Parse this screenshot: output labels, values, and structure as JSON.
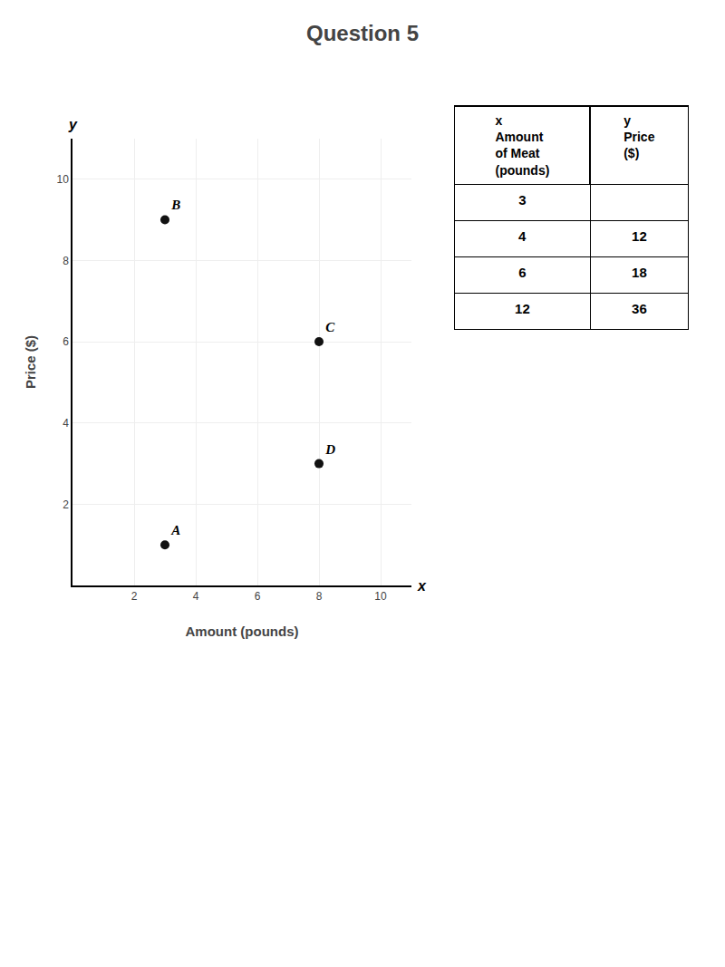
{
  "chart_data": {
    "type": "scatter",
    "title": "Question 5",
    "xlabel": "Amount (pounds)",
    "ylabel": "Price ($)",
    "x": [
      3,
      3,
      8,
      8
    ],
    "values": [
      1,
      9,
      6,
      3
    ],
    "labels": [
      "A",
      "B",
      "C",
      "D"
    ],
    "color": "#111111",
    "xlim": [
      0,
      11
    ],
    "ylim": [
      0,
      11
    ],
    "xticks": [
      2,
      4,
      6,
      8,
      10
    ],
    "yticks": [
      2,
      4,
      6,
      8,
      10
    ],
    "grid": true,
    "annotations": [
      {
        "text": "y",
        "axis": "y"
      },
      {
        "text": "x",
        "axis": "x"
      }
    ],
    "table": {
      "columns": [
        "x\nAmount\nof Meat\n(pounds)",
        "y\nPrice\n($)"
      ],
      "rows": [
        [
          3,
          null
        ],
        [
          4,
          12
        ],
        [
          6,
          18
        ],
        [
          12,
          36
        ]
      ]
    }
  }
}
